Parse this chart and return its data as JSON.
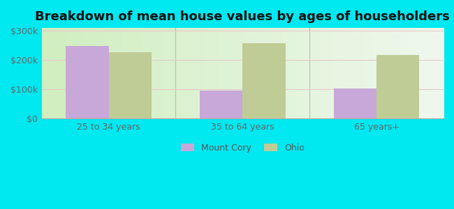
{
  "title": "Breakdown of mean house values by ages of householders",
  "categories": [
    "25 to 34 years",
    "35 to 64 years",
    "65 years+"
  ],
  "mount_cory_values": [
    248000,
    95000,
    102000
  ],
  "ohio_values": [
    228000,
    258000,
    218000
  ],
  "ylim": [
    0,
    310000
  ],
  "yticks": [
    0,
    100000,
    200000,
    300000
  ],
  "ytick_labels": [
    "$0",
    "$100k",
    "$200k",
    "$300k"
  ],
  "bar_color_mount_cory": "#c8a8d8",
  "bar_color_ohio": "#c0cc96",
  "background_outer": "#00e8f0",
  "background_inner_left": "#d0eec0",
  "background_inner_right": "#f0f8ee",
  "legend_mount_cory": "Mount Cory",
  "legend_ohio": "Ohio",
  "title_fontsize": 13,
  "tick_fontsize": 9,
  "legend_fontsize": 9,
  "bar_width": 0.32,
  "separator_color": "#bbbbbb"
}
